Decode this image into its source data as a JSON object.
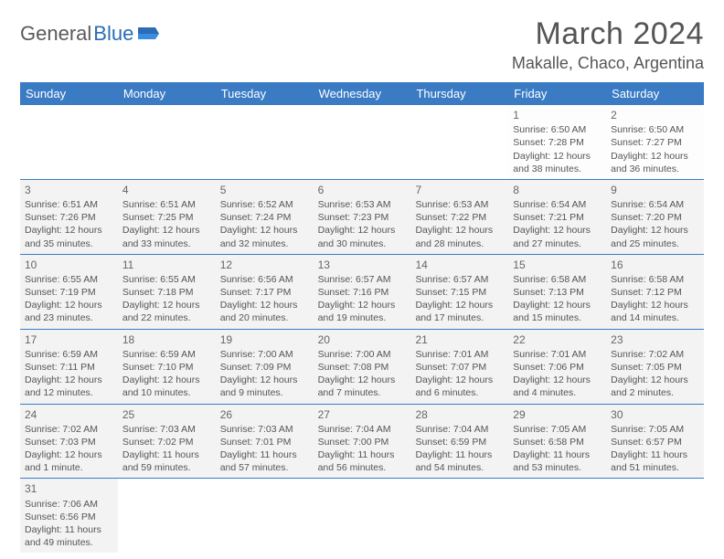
{
  "logo": {
    "text_a": "General",
    "text_b": "Blue"
  },
  "title": "March 2024",
  "location": "Makalle, Chaco, Argentina",
  "day_names": [
    "Sunday",
    "Monday",
    "Tuesday",
    "Wednesday",
    "Thursday",
    "Friday",
    "Saturday"
  ],
  "colors": {
    "header_bg": "#3a7bc4",
    "header_text": "#ffffff",
    "border": "#3a7bc4",
    "text": "#555555",
    "shade": "#f3f3f3"
  },
  "weeks": [
    [
      null,
      null,
      null,
      null,
      null,
      {
        "n": "1",
        "sr": "Sunrise: 6:50 AM",
        "ss": "Sunset: 7:28 PM",
        "dl": "Daylight: 12 hours and 38 minutes."
      },
      {
        "n": "2",
        "sr": "Sunrise: 6:50 AM",
        "ss": "Sunset: 7:27 PM",
        "dl": "Daylight: 12 hours and 36 minutes."
      }
    ],
    [
      {
        "n": "3",
        "sr": "Sunrise: 6:51 AM",
        "ss": "Sunset: 7:26 PM",
        "dl": "Daylight: 12 hours and 35 minutes."
      },
      {
        "n": "4",
        "sr": "Sunrise: 6:51 AM",
        "ss": "Sunset: 7:25 PM",
        "dl": "Daylight: 12 hours and 33 minutes."
      },
      {
        "n": "5",
        "sr": "Sunrise: 6:52 AM",
        "ss": "Sunset: 7:24 PM",
        "dl": "Daylight: 12 hours and 32 minutes."
      },
      {
        "n": "6",
        "sr": "Sunrise: 6:53 AM",
        "ss": "Sunset: 7:23 PM",
        "dl": "Daylight: 12 hours and 30 minutes."
      },
      {
        "n": "7",
        "sr": "Sunrise: 6:53 AM",
        "ss": "Sunset: 7:22 PM",
        "dl": "Daylight: 12 hours and 28 minutes."
      },
      {
        "n": "8",
        "sr": "Sunrise: 6:54 AM",
        "ss": "Sunset: 7:21 PM",
        "dl": "Daylight: 12 hours and 27 minutes."
      },
      {
        "n": "9",
        "sr": "Sunrise: 6:54 AM",
        "ss": "Sunset: 7:20 PM",
        "dl": "Daylight: 12 hours and 25 minutes."
      }
    ],
    [
      {
        "n": "10",
        "sr": "Sunrise: 6:55 AM",
        "ss": "Sunset: 7:19 PM",
        "dl": "Daylight: 12 hours and 23 minutes."
      },
      {
        "n": "11",
        "sr": "Sunrise: 6:55 AM",
        "ss": "Sunset: 7:18 PM",
        "dl": "Daylight: 12 hours and 22 minutes."
      },
      {
        "n": "12",
        "sr": "Sunrise: 6:56 AM",
        "ss": "Sunset: 7:17 PM",
        "dl": "Daylight: 12 hours and 20 minutes."
      },
      {
        "n": "13",
        "sr": "Sunrise: 6:57 AM",
        "ss": "Sunset: 7:16 PM",
        "dl": "Daylight: 12 hours and 19 minutes."
      },
      {
        "n": "14",
        "sr": "Sunrise: 6:57 AM",
        "ss": "Sunset: 7:15 PM",
        "dl": "Daylight: 12 hours and 17 minutes."
      },
      {
        "n": "15",
        "sr": "Sunrise: 6:58 AM",
        "ss": "Sunset: 7:13 PM",
        "dl": "Daylight: 12 hours and 15 minutes."
      },
      {
        "n": "16",
        "sr": "Sunrise: 6:58 AM",
        "ss": "Sunset: 7:12 PM",
        "dl": "Daylight: 12 hours and 14 minutes."
      }
    ],
    [
      {
        "n": "17",
        "sr": "Sunrise: 6:59 AM",
        "ss": "Sunset: 7:11 PM",
        "dl": "Daylight: 12 hours and 12 minutes."
      },
      {
        "n": "18",
        "sr": "Sunrise: 6:59 AM",
        "ss": "Sunset: 7:10 PM",
        "dl": "Daylight: 12 hours and 10 minutes."
      },
      {
        "n": "19",
        "sr": "Sunrise: 7:00 AM",
        "ss": "Sunset: 7:09 PM",
        "dl": "Daylight: 12 hours and 9 minutes."
      },
      {
        "n": "20",
        "sr": "Sunrise: 7:00 AM",
        "ss": "Sunset: 7:08 PM",
        "dl": "Daylight: 12 hours and 7 minutes."
      },
      {
        "n": "21",
        "sr": "Sunrise: 7:01 AM",
        "ss": "Sunset: 7:07 PM",
        "dl": "Daylight: 12 hours and 6 minutes."
      },
      {
        "n": "22",
        "sr": "Sunrise: 7:01 AM",
        "ss": "Sunset: 7:06 PM",
        "dl": "Daylight: 12 hours and 4 minutes."
      },
      {
        "n": "23",
        "sr": "Sunrise: 7:02 AM",
        "ss": "Sunset: 7:05 PM",
        "dl": "Daylight: 12 hours and 2 minutes."
      }
    ],
    [
      {
        "n": "24",
        "sr": "Sunrise: 7:02 AM",
        "ss": "Sunset: 7:03 PM",
        "dl": "Daylight: 12 hours and 1 minute."
      },
      {
        "n": "25",
        "sr": "Sunrise: 7:03 AM",
        "ss": "Sunset: 7:02 PM",
        "dl": "Daylight: 11 hours and 59 minutes."
      },
      {
        "n": "26",
        "sr": "Sunrise: 7:03 AM",
        "ss": "Sunset: 7:01 PM",
        "dl": "Daylight: 11 hours and 57 minutes."
      },
      {
        "n": "27",
        "sr": "Sunrise: 7:04 AM",
        "ss": "Sunset: 7:00 PM",
        "dl": "Daylight: 11 hours and 56 minutes."
      },
      {
        "n": "28",
        "sr": "Sunrise: 7:04 AM",
        "ss": "Sunset: 6:59 PM",
        "dl": "Daylight: 11 hours and 54 minutes."
      },
      {
        "n": "29",
        "sr": "Sunrise: 7:05 AM",
        "ss": "Sunset: 6:58 PM",
        "dl": "Daylight: 11 hours and 53 minutes."
      },
      {
        "n": "30",
        "sr": "Sunrise: 7:05 AM",
        "ss": "Sunset: 6:57 PM",
        "dl": "Daylight: 11 hours and 51 minutes."
      }
    ],
    [
      {
        "n": "31",
        "sr": "Sunrise: 7:06 AM",
        "ss": "Sunset: 6:56 PM",
        "dl": "Daylight: 11 hours and 49 minutes."
      },
      null,
      null,
      null,
      null,
      null,
      null
    ]
  ]
}
